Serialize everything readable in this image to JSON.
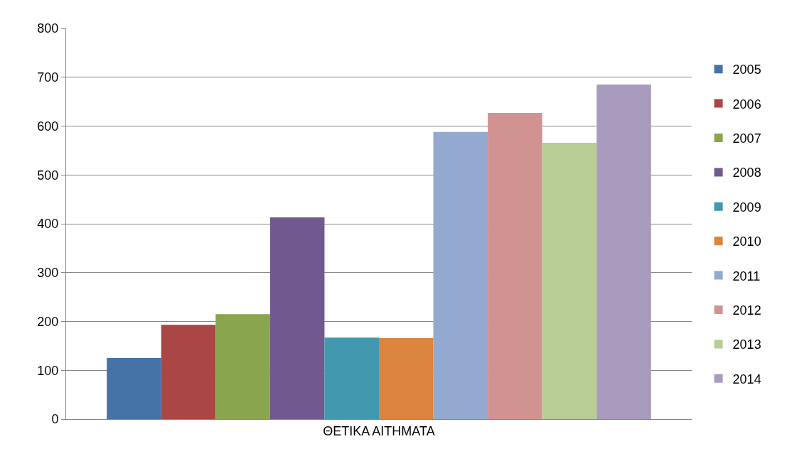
{
  "chart_data": {
    "type": "bar",
    "categories": [
      "ΘΕΤΙΚΑ ΑΙΤΗΜΑΤΑ"
    ],
    "series": [
      {
        "name": "2005",
        "color": "#4572a7",
        "values": [
          125
        ]
      },
      {
        "name": "2006",
        "color": "#aa4643",
        "values": [
          193
        ]
      },
      {
        "name": "2007",
        "color": "#89a54e",
        "values": [
          215
        ]
      },
      {
        "name": "2008",
        "color": "#71588f",
        "values": [
          413
        ]
      },
      {
        "name": "2009",
        "color": "#4198af",
        "values": [
          167
        ]
      },
      {
        "name": "2010",
        "color": "#db843d",
        "values": [
          166
        ]
      },
      {
        "name": "2011",
        "color": "#93a9cf",
        "values": [
          588
        ]
      },
      {
        "name": "2012",
        "color": "#d19392",
        "values": [
          627
        ]
      },
      {
        "name": "2013",
        "color": "#b9cd96",
        "values": [
          566
        ]
      },
      {
        "name": "2014",
        "color": "#a99bbd",
        "values": [
          685
        ]
      }
    ],
    "ylim": [
      0,
      800
    ],
    "yticks": [
      0,
      100,
      200,
      300,
      400,
      500,
      600,
      700,
      800
    ],
    "grid": "y",
    "legend": "right"
  }
}
